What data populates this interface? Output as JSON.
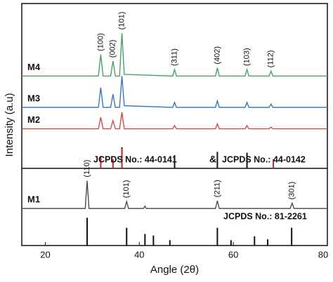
{
  "chart_data": [
    {
      "type": "line",
      "xlim": [
        15,
        80
      ],
      "ylim": [
        0,
        100
      ],
      "series": [
        {
          "name": "M4",
          "color": "#3a9f5c",
          "x": [
            15,
            31.3,
            31.8,
            32.3,
            33.9,
            34.4,
            34.9,
            35.8,
            36.3,
            36.8,
            47.1,
            47.5,
            47.9,
            56.2,
            56.6,
            57.0,
            62.5,
            62.9,
            63.3,
            67.6,
            68.0,
            68.4,
            80
          ],
          "values": [
            56,
            56,
            69,
            56,
            56,
            65,
            56,
            56,
            82,
            57,
            56,
            60,
            56,
            56,
            61,
            56,
            56,
            60,
            56,
            56,
            59,
            56,
            56
          ]
        },
        {
          "name": "M3",
          "color": "#2a6fce",
          "x": [
            15,
            31.3,
            31.8,
            32.3,
            33.9,
            34.4,
            34.9,
            35.8,
            36.3,
            36.8,
            47.1,
            47.5,
            47.9,
            56.2,
            56.6,
            57.0,
            62.5,
            62.9,
            63.3,
            67.6,
            68.0,
            68.4,
            80
          ],
          "values": [
            37,
            37,
            49,
            37,
            37,
            45,
            37,
            37,
            56,
            38,
            37,
            40,
            37,
            37,
            41,
            37,
            37,
            40,
            37,
            37,
            39,
            37,
            37
          ]
        },
        {
          "name": "M2",
          "color": "#e03c3c",
          "x": [
            15,
            31.3,
            31.8,
            32.3,
            33.9,
            34.4,
            34.9,
            35.8,
            36.3,
            36.8,
            47.1,
            47.5,
            47.9,
            56.2,
            56.6,
            57.0,
            62.5,
            62.9,
            63.3,
            67.6,
            68.0,
            68.4,
            80
          ],
          "values": [
            24,
            24,
            31,
            24,
            24,
            29,
            24,
            24,
            34,
            24,
            24,
            26,
            24,
            24,
            27,
            24,
            24,
            26,
            24,
            24,
            25,
            24,
            24
          ]
        }
      ],
      "peak_labels": [
        {
          "label": "(100)",
          "x": 31.8
        },
        {
          "label": "(002)",
          "x": 34.4
        },
        {
          "label": "(101)",
          "x": 36.3
        },
        {
          "label": "(311)",
          "x": 47.5
        },
        {
          "label": "(402)",
          "x": 56.6
        },
        {
          "label": "(103)",
          "x": 62.9
        },
        {
          "label": "(112)",
          "x": 68.0
        }
      ],
      "references": [
        {
          "name": "JCPDS No.: 44-0141",
          "color": "#111111",
          "x": [
            36.3,
            47.5,
            56.6,
            62.9
          ],
          "values": [
            12.8,
            8,
            10,
            9.5
          ]
        },
        {
          "name": "JCPDS No.: 44-0142",
          "color": "#e02020",
          "x": [
            31.8,
            34.4,
            36.3,
            68.5
          ],
          "values": [
            7.5,
            5.5,
            12,
            5.5
          ]
        }
      ],
      "reference_joiner": "&"
    },
    {
      "type": "line",
      "xlim": [
        15,
        80
      ],
      "ylim": [
        0,
        100
      ],
      "xticks": [
        20,
        40,
        60,
        80
      ],
      "x_label": "Angle (2θ)",
      "y_label": "Intensity (a.u)",
      "series": [
        {
          "name": "M1",
          "color": "#444444",
          "x": [
            15,
            28.5,
            28.9,
            29.3,
            36.9,
            37.3,
            37.7,
            40.9,
            41.2,
            41.5,
            56.2,
            56.6,
            57.0,
            72.1,
            72.5,
            72.9,
            80
          ],
          "values": [
            48,
            48,
            84,
            48,
            48,
            57,
            48,
            48,
            51,
            48,
            48,
            58,
            48,
            48,
            55,
            48,
            48
          ]
        }
      ],
      "peak_labels": [
        {
          "label": "(110)",
          "x": 28.9
        },
        {
          "label": "(101)",
          "x": 37.3
        },
        {
          "label": "(211)",
          "x": 56.6
        },
        {
          "label": "(301)",
          "x": 72.5
        }
      ],
      "references": [
        {
          "name": "JCPDS No.: 81-2261",
          "color": "#111111",
          "x": [
            28.9,
            37.3,
            41.2,
            43.0,
            46.5,
            56.6,
            59.5,
            64.5,
            67.3,
            72.4
          ],
          "values": [
            36,
            23,
            15,
            13,
            7,
            23,
            7,
            12,
            8,
            23
          ]
        }
      ]
    }
  ]
}
